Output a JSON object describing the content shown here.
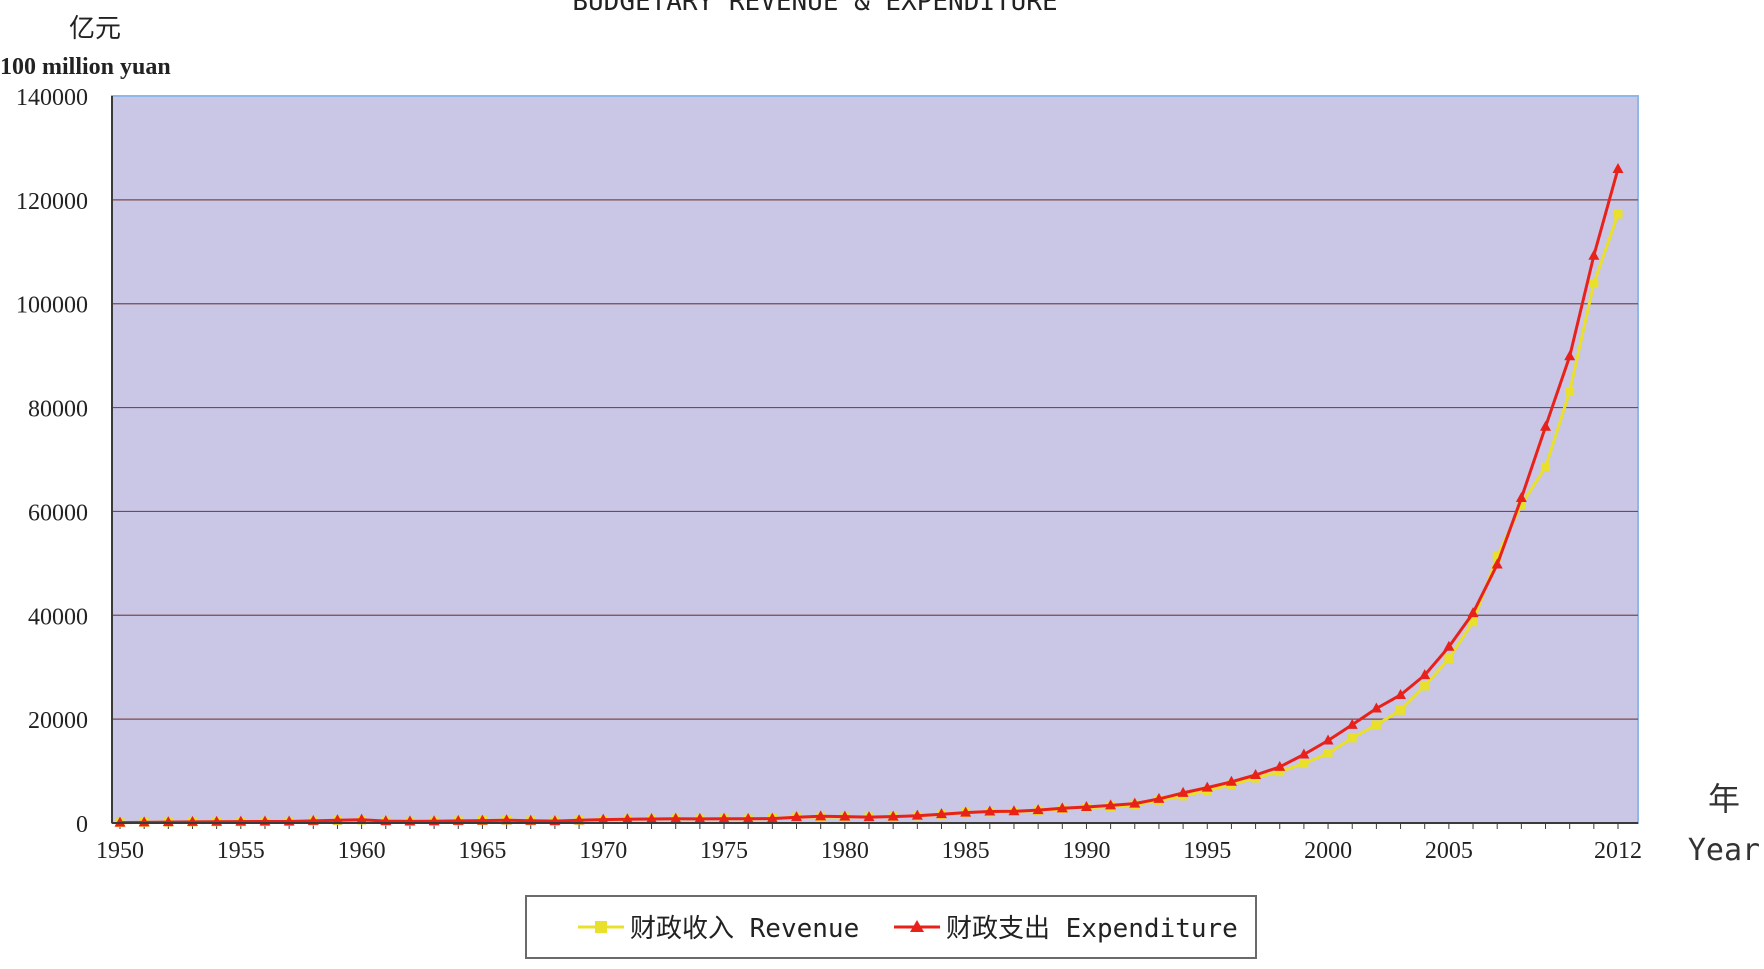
{
  "chart_data": {
    "type": "line",
    "title": "BUDGETARY REVENUE & EXPENDITURE",
    "ylabel_cn": "亿元",
    "ylabel": "100 million yuan",
    "xlabel_cn": "年",
    "xlabel": "Year",
    "ylim": [
      0,
      140000
    ],
    "xlim": [
      1950,
      2012
    ],
    "y_ticks": [
      "0",
      "20000",
      "40000",
      "60000",
      "80000",
      "100000",
      "120000",
      "140000"
    ],
    "x_ticks": [
      "1950",
      "1955",
      "1960",
      "1965",
      "1970",
      "1975",
      "1980",
      "1985",
      "1990",
      "1995",
      "2000",
      "2005",
      "2012"
    ],
    "grid": true,
    "legend_position": "bottom",
    "colors": {
      "plot_background": "#c9c6e6",
      "revenue": "#e8e02a",
      "expenditure": "#e8221a",
      "gridline": "#7a4a4a",
      "axis": "#3a3a3a"
    },
    "series": [
      {
        "name": "财政收入 Revenue",
        "marker": "square",
        "x": [
          1950,
          1951,
          1952,
          1953,
          1954,
          1955,
          1956,
          1957,
          1958,
          1959,
          1960,
          1961,
          1962,
          1963,
          1964,
          1965,
          1966,
          1967,
          1968,
          1969,
          1970,
          1971,
          1972,
          1973,
          1974,
          1975,
          1976,
          1977,
          1978,
          1979,
          1980,
          1981,
          1982,
          1983,
          1984,
          1985,
          1986,
          1987,
          1988,
          1989,
          1990,
          1991,
          1992,
          1993,
          1994,
          1995,
          1996,
          1997,
          1998,
          1999,
          2000,
          2001,
          2002,
          2003,
          2004,
          2005,
          2006,
          2007,
          2008,
          2009,
          2010,
          2011,
          2012
        ],
        "values": [
          62,
          125,
          174,
          213,
          245,
          250,
          280,
          304,
          379,
          487,
          572,
          356,
          313,
          342,
          400,
          473,
          558,
          419,
          361,
          527,
          663,
          744,
          767,
          809,
          783,
          816,
          776,
          874,
          1132,
          1146,
          1160,
          1176,
          1212,
          1367,
          1643,
          2005,
          2122,
          2199,
          2357,
          2665,
          2937,
          3149,
          3483,
          4349,
          5218,
          6242,
          7408,
          8651,
          9876,
          11444,
          13395,
          16386,
          18904,
          21715,
          26396,
          31649,
          38760,
          51322,
          61330,
          68518,
          83102,
          103874,
          117254
        ]
      },
      {
        "name": "财政支出 Expenditure",
        "marker": "triangle",
        "x": [
          1950,
          1951,
          1952,
          1953,
          1954,
          1955,
          1956,
          1957,
          1958,
          1959,
          1960,
          1961,
          1962,
          1963,
          1964,
          1965,
          1966,
          1967,
          1968,
          1969,
          1970,
          1971,
          1972,
          1973,
          1974,
          1975,
          1976,
          1977,
          1978,
          1979,
          1980,
          1981,
          1982,
          1983,
          1984,
          1985,
          1986,
          1987,
          1988,
          1989,
          1990,
          1991,
          1992,
          1993,
          1994,
          1995,
          1996,
          1997,
          1998,
          1999,
          2000,
          2001,
          2002,
          2003,
          2004,
          2005,
          2006,
          2007,
          2008,
          2009,
          2010,
          2011,
          2012
        ],
        "values": [
          68,
          122,
          173,
          219,
          244,
          262,
          298,
          296,
          400,
          544,
          643,
          367,
          305,
          339,
          399,
          466,
          541,
          442,
          360,
          526,
          649,
          732,
          766,
          809,
          791,
          821,
          806,
          843,
          1122,
          1282,
          1229,
          1138,
          1230,
          1410,
          1701,
          2004,
          2205,
          2262,
          2491,
          2824,
          3084,
          3387,
          3742,
          4642,
          5793,
          6824,
          7938,
          9234,
          10798,
          13188,
          15887,
          18903,
          22053,
          24650,
          28487,
          33930,
          40423,
          49781,
          62593,
          76300,
          89874,
          109248,
          125953
        ]
      }
    ],
    "legend": [
      "财政收入 Revenue",
      "财政支出 Expenditure"
    ]
  }
}
